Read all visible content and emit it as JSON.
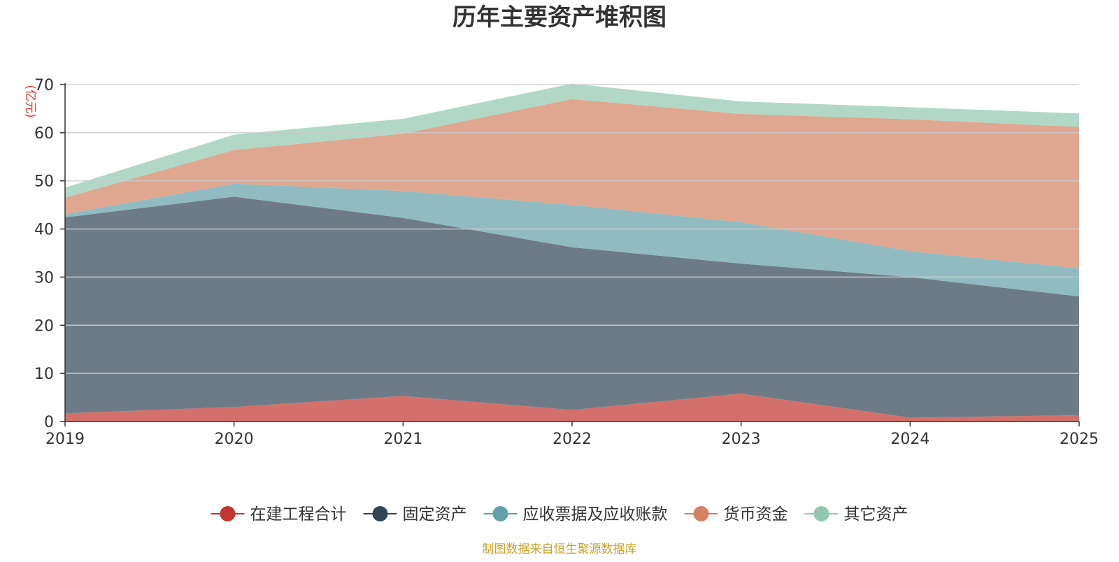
{
  "chart_data": {
    "type": "area",
    "stacked": true,
    "title": "历年主要资产堆积图",
    "unit": "(亿元)",
    "x": [
      "2019",
      "2020",
      "2021",
      "2022",
      "2023",
      "2024",
      "2025"
    ],
    "ylim": [
      0,
      70
    ],
    "yticks": [
      "0",
      "10",
      "20",
      "30",
      "40",
      "50",
      "60",
      "70"
    ],
    "grid": true,
    "legend_position": "bottom",
    "series": [
      {
        "name": "在建工程合计",
        "color": "#c23531",
        "fill": "#d4706b",
        "values": [
          1.7,
          3.0,
          5.3,
          2.4,
          5.8,
          0.8,
          1.3
        ]
      },
      {
        "name": "固定资产",
        "color": "#2f4554",
        "fill": "#6d7b86",
        "values": [
          40.7,
          43.7,
          37.0,
          33.8,
          27.0,
          29.2,
          24.7
        ]
      },
      {
        "name": "应收票据及应收账款",
        "color": "#61a0a8",
        "fill": "#90bbc1",
        "values": [
          0.7,
          2.7,
          5.6,
          8.8,
          8.6,
          5.4,
          5.8
        ]
      },
      {
        "name": "货币资金",
        "color": "#d48265",
        "fill": "#dfa690",
        "values": [
          3.4,
          7.0,
          11.9,
          22.0,
          22.5,
          27.4,
          29.4
        ]
      },
      {
        "name": "其它资产",
        "color": "#91c7ae",
        "fill": "#b1d8c6",
        "values": [
          2.1,
          3.2,
          3.1,
          3.2,
          2.6,
          2.5,
          2.8
        ]
      }
    ]
  },
  "footer": {
    "source": "制图数据来自恒生聚源数据库",
    "color": "#c9a227"
  },
  "unit_color": "#e8382f"
}
